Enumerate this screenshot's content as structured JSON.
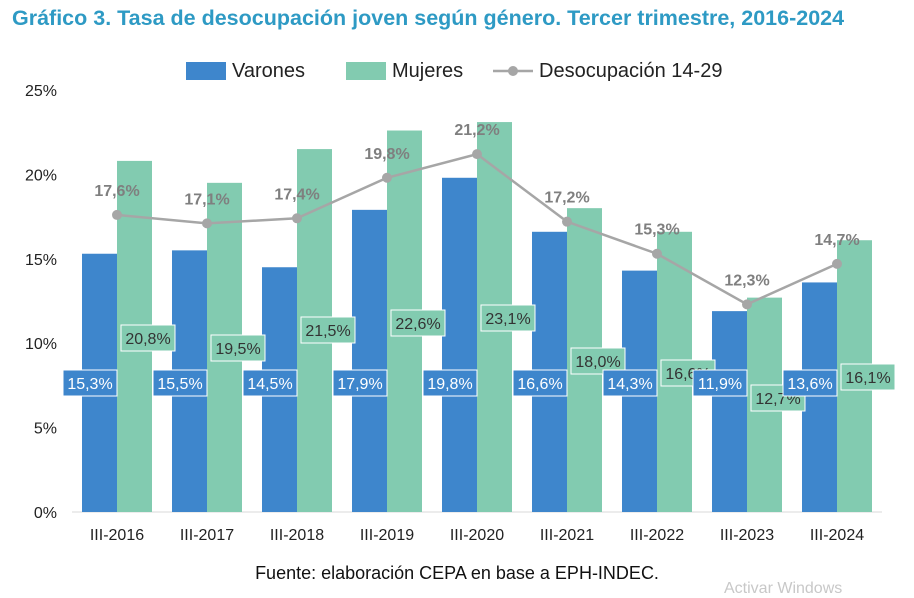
{
  "title": "Gráfico 3. Tasa de desocupación joven según género. Tercer trimestre, 2016-2024",
  "source": "Fuente: elaboración CEPA en base a EPH-INDEC.",
  "watermark": "Activar Windows",
  "colors": {
    "varones": "#3E86CC",
    "mujeres": "#82CBB0",
    "line": "#A6A6A6",
    "title": "#2E9AC4"
  },
  "chart_data": {
    "type": "bar",
    "categories": [
      "III-2016",
      "III-2017",
      "III-2018",
      "III-2019",
      "III-2020",
      "III-2021",
      "III-2022",
      "III-2023",
      "III-2024"
    ],
    "series": [
      {
        "name": "Varones",
        "type": "bar",
        "values": [
          15.3,
          15.5,
          14.5,
          17.9,
          19.8,
          16.6,
          14.3,
          11.9,
          13.6
        ],
        "labels": [
          "15,3%",
          "15,5%",
          "14,5%",
          "17,9%",
          "19,8%",
          "16,6%",
          "14,3%",
          "11,9%",
          "13,6%"
        ]
      },
      {
        "name": "Mujeres",
        "type": "bar",
        "values": [
          20.8,
          19.5,
          21.5,
          22.6,
          23.1,
          18.0,
          16.6,
          12.7,
          16.1
        ],
        "labels": [
          "20,8%",
          "19,5%",
          "21,5%",
          "22,6%",
          "23,1%",
          "18,0%",
          "16,6%",
          "12,7%",
          "16,1%"
        ]
      },
      {
        "name": "Desocupación 14-29",
        "type": "line",
        "values": [
          17.6,
          17.1,
          17.4,
          19.8,
          21.2,
          17.2,
          15.3,
          12.3,
          14.7
        ],
        "labels": [
          "17,6%",
          "17,1%",
          "17,4%",
          "19,8%",
          "21,2%",
          "17,2%",
          "15,3%",
          "12,3%",
          "14,7%"
        ]
      }
    ],
    "ylim": [
      0,
      25
    ],
    "yticks": [
      "0%",
      "5%",
      "10%",
      "15%",
      "20%",
      "25%"
    ],
    "legend": "top",
    "grid": false
  }
}
